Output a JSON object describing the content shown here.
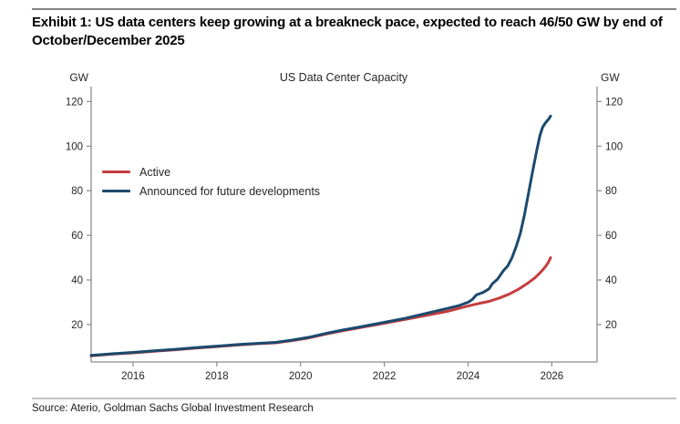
{
  "header": {
    "title": "Exhibit 1: US data centers keep growing at a breakneck pace, expected to reach 46/50 GW by end of October/December 2025"
  },
  "footer": {
    "source": "Source: Aterio, Goldman Sachs Global Investment Research"
  },
  "chart_data": {
    "type": "line",
    "title": "US Data Center Capacity",
    "left_axis_label": "GW",
    "right_axis_label": "GW",
    "xlim": [
      2015,
      2027.08
    ],
    "ylim": [
      3.2,
      126.7
    ],
    "x_ticks": [
      2016,
      2018,
      2020,
      2022,
      2024,
      2026
    ],
    "y_ticks": [
      20,
      40,
      60,
      80,
      100,
      120
    ],
    "grid": false,
    "legend_position": "upper-left-inside",
    "axis_color": "#8c8c8c",
    "tick_label_color": "#262626",
    "legend_items": [
      {
        "label": "Active",
        "color": "#c43d40"
      },
      {
        "label": "Announced for future developments",
        "color": "#1b4a6e"
      }
    ],
    "series": [
      {
        "name": "Active",
        "color": "#c43d40",
        "x": [
          2015.0,
          2015.5,
          2016.0,
          2016.5,
          2017.0,
          2017.5,
          2018.0,
          2018.5,
          2019.0,
          2019.4,
          2019.8,
          2020.2,
          2020.6,
          2021.0,
          2021.5,
          2022.0,
          2022.5,
          2023.0,
          2023.5,
          2024.0,
          2024.25,
          2024.5,
          2024.75,
          2025.0,
          2025.2,
          2025.4,
          2025.6,
          2025.75,
          2025.85,
          2025.92,
          2025.97
        ],
        "y": [
          6.0,
          6.7,
          7.3,
          8.0,
          8.7,
          9.4,
          10.1,
          10.8,
          11.4,
          11.8,
          12.8,
          14.0,
          15.7,
          17.2,
          18.9,
          20.6,
          22.3,
          24.1,
          25.9,
          28.3,
          29.4,
          30.4,
          31.9,
          33.8,
          35.8,
          38.2,
          41.0,
          43.8,
          46.0,
          48.0,
          50.0
        ]
      },
      {
        "name": "Announced for future developments",
        "color": "#1b4a6e",
        "x": [
          2015.0,
          2015.5,
          2016.0,
          2016.5,
          2017.0,
          2017.5,
          2018.0,
          2018.5,
          2019.0,
          2019.4,
          2019.8,
          2020.2,
          2020.6,
          2021.0,
          2021.5,
          2022.0,
          2022.5,
          2023.0,
          2023.5,
          2023.8,
          2024.0,
          2024.1,
          2024.2,
          2024.35,
          2024.5,
          2024.58,
          2024.7,
          2024.85,
          2024.95,
          2025.05,
          2025.15,
          2025.25,
          2025.35,
          2025.45,
          2025.55,
          2025.65,
          2025.72,
          2025.78,
          2025.85,
          2025.92,
          2025.97
        ],
        "y": [
          6.2,
          6.9,
          7.5,
          8.2,
          8.9,
          9.6,
          10.3,
          11.0,
          11.6,
          12.0,
          13.0,
          14.3,
          16.0,
          17.5,
          19.2,
          21.0,
          22.8,
          25.0,
          27.2,
          28.6,
          30.0,
          31.2,
          33.3,
          34.3,
          36.0,
          38.3,
          40.3,
          44.3,
          46.3,
          50.0,
          55.0,
          61.0,
          69.5,
          79.5,
          89.5,
          99.0,
          105.0,
          108.5,
          110.5,
          112.0,
          113.5
        ]
      }
    ]
  }
}
